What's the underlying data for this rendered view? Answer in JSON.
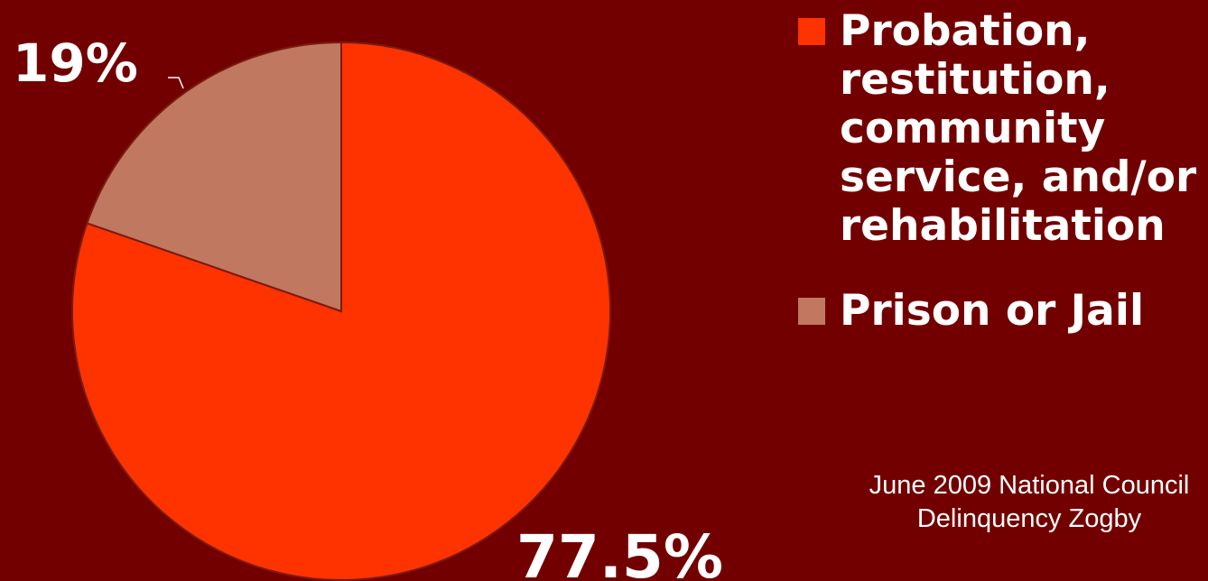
{
  "chart_data": {
    "type": "pie",
    "slices": [
      {
        "label": "Probation, restitution, community service, and/or rehabilitation",
        "value": 77.5,
        "display": "77.5%",
        "color": "#ff3300"
      },
      {
        "label": "Prison or Jail",
        "value": 19,
        "display": "19%",
        "color": "#c07860"
      }
    ],
    "legend_position": "right",
    "start": "12 o'clock"
  },
  "legend": [
    {
      "label": "Probation,\nrestitution,\ncommunity\nservice, and/or\nrehabilitation",
      "color": "#ff3300"
    },
    {
      "label": "Prison or Jail",
      "color": "#c07860"
    }
  ],
  "source_note": "June 2009 National Council\nDelinquency Zogby",
  "colors": {
    "background": "#730000",
    "slice_edge": "#7a1a10"
  }
}
